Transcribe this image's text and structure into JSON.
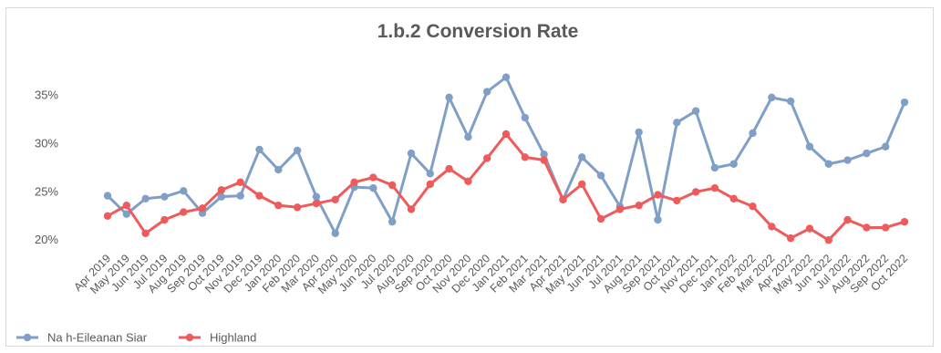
{
  "chart_data": {
    "type": "line",
    "title": "1.b.2  Conversion Rate",
    "xlabel": "",
    "ylabel": "",
    "ylim": [
      0.185,
      0.38
    ],
    "yticks": [
      "35%",
      "30%",
      "25%",
      "20%"
    ],
    "ytick_values": [
      0.35,
      0.3,
      0.25,
      0.2
    ],
    "grid": false,
    "legend_position": "bottom-left",
    "categories": [
      "Apr 2019",
      "May 2019",
      "Jun 2019",
      "Jul 2019",
      "Aug 2019",
      "Sep 2019",
      "Oct 2019",
      "Nov 2019",
      "Dec 2019",
      "Jan 2020",
      "Feb 2020",
      "Mar 2020",
      "Apr 2020",
      "May 2020",
      "Jun 2020",
      "Jul 2020",
      "Aug 2020",
      "Sep 2020",
      "Oct 2020",
      "Nov 2020",
      "Dec 2020",
      "Jan 2021",
      "Feb 2021",
      "Mar 2021",
      "Apr 2021",
      "May 2021",
      "Jun 2021",
      "Jul 2021",
      "Aug 2021",
      "Sep 2021",
      "Oct 2021",
      "Nov 2021",
      "Dec 2021",
      "Jan 2022",
      "Feb 2022",
      "Mar 2022",
      "Apr 2022",
      "May 2022",
      "Jun 2022",
      "Jul 2022",
      "Aug 2022",
      "Sep 2022",
      "Oct 2022"
    ],
    "series": [
      {
        "name": "Na h-Eileanan Siar",
        "color": "#7f9fc6",
        "values": [
          0.245,
          0.226,
          0.242,
          0.244,
          0.25,
          0.227,
          0.244,
          0.245,
          0.293,
          0.272,
          0.292,
          0.244,
          0.206,
          0.254,
          0.253,
          0.218,
          0.289,
          0.268,
          0.347,
          0.306,
          0.353,
          0.368,
          0.326,
          0.288,
          0.241,
          0.285,
          0.266,
          0.234,
          0.311,
          0.22,
          0.321,
          0.333,
          0.274,
          0.278,
          0.31,
          0.347,
          0.343,
          0.296,
          0.278,
          0.282,
          0.289,
          0.296,
          0.342
        ]
      },
      {
        "name": "Highland",
        "color": "#ef5b5b",
        "values": [
          0.224,
          0.235,
          0.206,
          0.22,
          0.228,
          0.232,
          0.251,
          0.259,
          0.245,
          0.235,
          0.233,
          0.237,
          0.241,
          0.259,
          0.264,
          0.256,
          0.231,
          0.257,
          0.273,
          0.26,
          0.284,
          0.309,
          0.285,
          0.282,
          0.241,
          0.257,
          0.221,
          0.231,
          0.235,
          0.246,
          0.24,
          0.249,
          0.253,
          0.242,
          0.234,
          0.213,
          0.201,
          0.211,
          0.199,
          0.22,
          0.212,
          0.212,
          0.218
        ]
      }
    ]
  }
}
